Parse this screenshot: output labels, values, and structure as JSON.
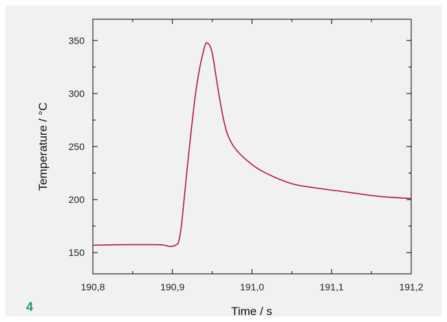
{
  "figure": {
    "number": "4"
  },
  "colors": {
    "curve": "#b0164a",
    "accent": "#1a9a78",
    "axis": "#000000"
  },
  "chart_data": {
    "type": "line",
    "title": "",
    "xlabel": "Time / s",
    "ylabel": "Temperature / °C",
    "xlim": [
      190.8,
      191.2
    ],
    "ylim": [
      130,
      370
    ],
    "xticks": [
      190.8,
      190.9,
      191.0,
      191.1,
      191.2
    ],
    "xtick_labels": [
      "190,8",
      "190,9",
      "191,0",
      "191,1",
      "191,2"
    ],
    "yticks": [
      150,
      200,
      250,
      300,
      350
    ],
    "ytick_labels": [
      "150",
      "200",
      "250",
      "300",
      "350"
    ],
    "grid": false,
    "legend": "none",
    "series": [
      {
        "x": [
          190.8,
          190.84,
          190.88,
          190.89,
          190.895,
          190.9,
          190.905,
          190.908,
          190.912,
          190.92,
          190.93,
          190.94,
          190.945,
          190.95,
          190.955,
          190.96,
          190.965,
          190.97,
          190.98,
          191.0,
          191.02,
          191.05,
          191.08,
          191.12,
          191.16,
          191.2
        ],
        "y": [
          157,
          157.5,
          157.5,
          157,
          156,
          156,
          157.5,
          161,
          180,
          240,
          305,
          343,
          347,
          338,
          315,
          292,
          273,
          260,
          247,
          233,
          224,
          215,
          211,
          207,
          203,
          201
        ]
      }
    ]
  }
}
